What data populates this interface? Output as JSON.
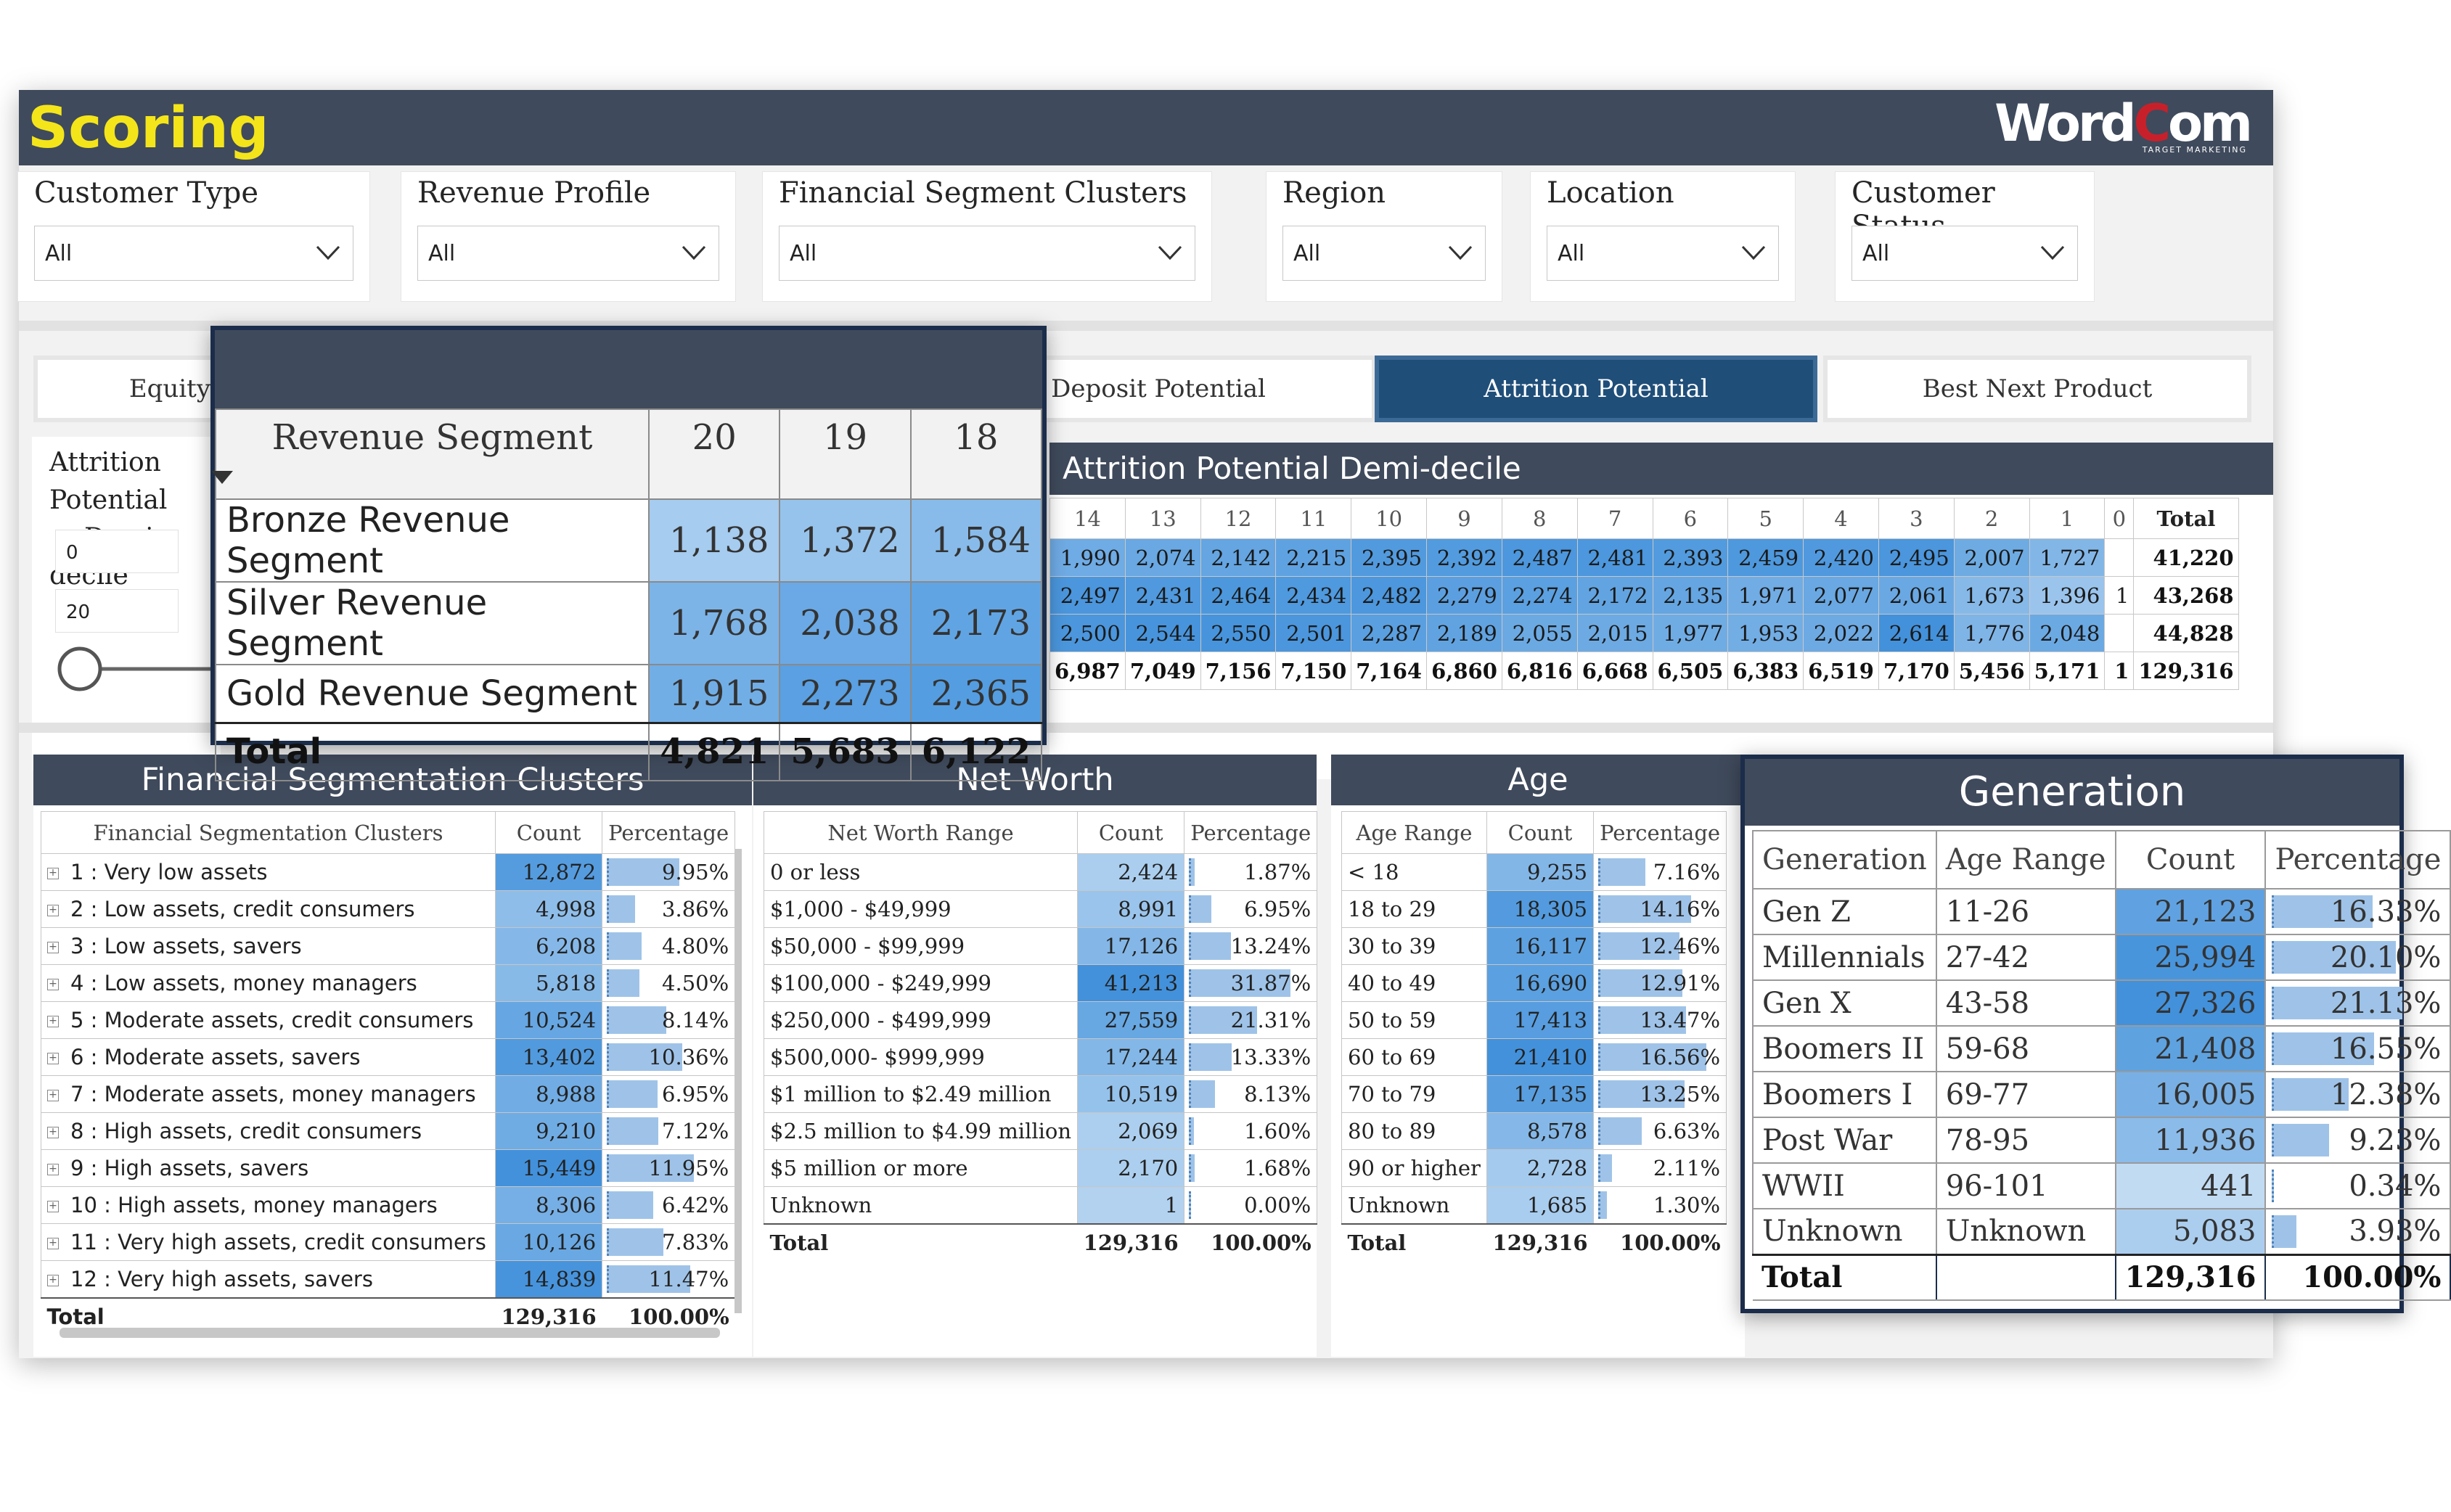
{
  "app_title": "Scoring",
  "logo": {
    "word": "Word",
    "c": "C",
    "om": "om",
    "tagline": "TARGET MARKETING"
  },
  "filters": [
    {
      "label": "Customer Type",
      "value": "All"
    },
    {
      "label": "Revenue Profile",
      "value": "All"
    },
    {
      "label": "Financial Segment Clusters",
      "value": "All"
    },
    {
      "label": "Region",
      "value": "All"
    },
    {
      "label": "Location",
      "value": "All"
    },
    {
      "label": "Customer Status",
      "value": "All"
    }
  ],
  "tabs": [
    {
      "label": "Equity Potential"
    },
    {
      "label": "Deposit Potential"
    },
    {
      "label": "Attrition Potential",
      "active": true
    },
    {
      "label": "Best Next Product"
    }
  ],
  "range_slicer": {
    "title_line1": "Attrition Potential",
    "title_line2": "Demi-decile",
    "min": "0",
    "max": "20"
  },
  "attrition": {
    "title": "Attrition Potential Demi-decile",
    "columns": [
      "14",
      "13",
      "12",
      "11",
      "10",
      "9",
      "8",
      "7",
      "6",
      "5",
      "4",
      "3",
      "2",
      "1",
      "0",
      "Total"
    ],
    "rows": [
      [
        "1,990",
        "2,074",
        "2,142",
        "2,215",
        "2,395",
        "2,392",
        "2,487",
        "2,481",
        "2,393",
        "2,459",
        "2,420",
        "2,495",
        "2,007",
        "1,727",
        "",
        "41,220"
      ],
      [
        "2,497",
        "2,431",
        "2,464",
        "2,434",
        "2,482",
        "2,279",
        "2,274",
        "2,172",
        "2,135",
        "1,971",
        "2,077",
        "2,061",
        "1,673",
        "1,396",
        "1",
        "43,268"
      ],
      [
        "2,500",
        "2,544",
        "2,550",
        "2,501",
        "2,287",
        "2,189",
        "2,055",
        "2,015",
        "1,977",
        "1,953",
        "2,022",
        "2,614",
        "1,776",
        "2,048",
        "",
        "44,828"
      ]
    ],
    "total_row": [
      "6,987",
      "7,049",
      "7,156",
      "7,150",
      "7,164",
      "6,860",
      "6,816",
      "6,668",
      "6,505",
      "6,383",
      "6,519",
      "7,170",
      "5,456",
      "5,171",
      "1",
      "129,316"
    ]
  },
  "revenue_segment": {
    "header": "Revenue Segment",
    "columns": [
      "20",
      "19",
      "18"
    ],
    "rows": [
      {
        "label": "Bronze Revenue Segment",
        "values": [
          "1,138",
          "1,372",
          "1,584"
        ]
      },
      {
        "label": "Silver Revenue Segment",
        "values": [
          "1,768",
          "2,038",
          "2,173"
        ]
      },
      {
        "label": "Gold Revenue Segment",
        "values": [
          "1,915",
          "2,273",
          "2,365"
        ]
      }
    ],
    "total": {
      "label": "Total",
      "values": [
        "4,821",
        "5,683",
        "6,122"
      ]
    }
  },
  "fsc": {
    "title": "Financial Segmentation Clusters",
    "columns": [
      "Financial Segmentation Clusters",
      "Count",
      "Percentage"
    ],
    "rows": [
      {
        "label": "1 : Very low assets",
        "count": "12,872",
        "pct": "9.95%",
        "p": 9.95
      },
      {
        "label": "2 : Low assets, credit consumers",
        "count": "4,998",
        "pct": "3.86%",
        "p": 3.86
      },
      {
        "label": "3 : Low assets, savers",
        "count": "6,208",
        "pct": "4.80%",
        "p": 4.8
      },
      {
        "label": "4 : Low assets, money managers",
        "count": "5,818",
        "pct": "4.50%",
        "p": 4.5
      },
      {
        "label": "5 : Moderate assets, credit consumers",
        "count": "10,524",
        "pct": "8.14%",
        "p": 8.14
      },
      {
        "label": "6 : Moderate assets, savers",
        "count": "13,402",
        "pct": "10.36%",
        "p": 10.36
      },
      {
        "label": "7 : Moderate assets, money managers",
        "count": "8,988",
        "pct": "6.95%",
        "p": 6.95
      },
      {
        "label": "8 : High assets, credit consumers",
        "count": "9,210",
        "pct": "7.12%",
        "p": 7.12
      },
      {
        "label": "9 : High assets, savers",
        "count": "15,449",
        "pct": "11.95%",
        "p": 11.95
      },
      {
        "label": "10 : High assets, money managers",
        "count": "8,306",
        "pct": "6.42%",
        "p": 6.42
      },
      {
        "label": "11 : Very high assets, credit consumers",
        "count": "10,126",
        "pct": "7.83%",
        "p": 7.83
      },
      {
        "label": "12 : Very high assets, savers",
        "count": "14,839",
        "pct": "11.47%",
        "p": 11.47
      }
    ],
    "total": {
      "label": "Total",
      "count": "129,316",
      "pct": "100.00%"
    }
  },
  "networth": {
    "title": "Net Worth",
    "columns": [
      "Net Worth Range",
      "Count",
      "Percentage"
    ],
    "rows": [
      {
        "label": "0 or less",
        "count": "2,424",
        "pct": "1.87%",
        "p": 1.87
      },
      {
        "label": "$1,000 - $49,999",
        "count": "8,991",
        "pct": "6.95%",
        "p": 6.95
      },
      {
        "label": "$50,000 - $99,999",
        "count": "17,126",
        "pct": "13.24%",
        "p": 13.24
      },
      {
        "label": "$100,000 - $249,999",
        "count": "41,213",
        "pct": "31.87%",
        "p": 31.87
      },
      {
        "label": "$250,000 - $499,999",
        "count": "27,559",
        "pct": "21.31%",
        "p": 21.31
      },
      {
        "label": "$500,000- $999,999",
        "count": "17,244",
        "pct": "13.33%",
        "p": 13.33
      },
      {
        "label": "$1 million to $2.49 million",
        "count": "10,519",
        "pct": "8.13%",
        "p": 8.13
      },
      {
        "label": "$2.5 million to $4.99 million",
        "count": "2,069",
        "pct": "1.60%",
        "p": 1.6
      },
      {
        "label": "$5 million or more",
        "count": "2,170",
        "pct": "1.68%",
        "p": 1.68
      },
      {
        "label": "Unknown",
        "count": "1",
        "pct": "0.00%",
        "p": 0
      }
    ],
    "total": {
      "label": "Total",
      "count": "129,316",
      "pct": "100.00%"
    }
  },
  "age": {
    "title": "Age",
    "columns": [
      "Age Range",
      "Count",
      "Percentage"
    ],
    "rows": [
      {
        "label": "< 18",
        "count": "9,255",
        "pct": "7.16%",
        "p": 7.16
      },
      {
        "label": "18 to 29",
        "count": "18,305",
        "pct": "14.16%",
        "p": 14.16
      },
      {
        "label": "30 to 39",
        "count": "16,117",
        "pct": "12.46%",
        "p": 12.46
      },
      {
        "label": "40 to 49",
        "count": "16,690",
        "pct": "12.91%",
        "p": 12.91
      },
      {
        "label": "50 to 59",
        "count": "17,413",
        "pct": "13.47%",
        "p": 13.47
      },
      {
        "label": "60 to 69",
        "count": "21,410",
        "pct": "16.56%",
        "p": 16.56
      },
      {
        "label": "70 to 79",
        "count": "17,135",
        "pct": "13.25%",
        "p": 13.25
      },
      {
        "label": "80 to 89",
        "count": "8,578",
        "pct": "6.63%",
        "p": 6.63
      },
      {
        "label": "90 or higher",
        "count": "2,728",
        "pct": "2.11%",
        "p": 2.11
      },
      {
        "label": "Unknown",
        "count": "1,685",
        "pct": "1.30%",
        "p": 1.3
      }
    ],
    "total": {
      "label": "Total",
      "count": "129,316",
      "pct": "100.00%"
    }
  },
  "generation": {
    "title": "Generation",
    "columns": [
      "Generation",
      "Age Range",
      "Count",
      "Percentage"
    ],
    "rows": [
      {
        "label": "Gen Z",
        "range": "11-26",
        "count": "21,123",
        "pct": "16.33%",
        "p": 16.33
      },
      {
        "label": "Millennials",
        "range": "27-42",
        "count": "25,994",
        "pct": "20.10%",
        "p": 20.1
      },
      {
        "label": "Gen X",
        "range": "43-58",
        "count": "27,326",
        "pct": "21.13%",
        "p": 21.13
      },
      {
        "label": "Boomers II",
        "range": "59-68",
        "count": "21,408",
        "pct": "16.55%",
        "p": 16.55
      },
      {
        "label": "Boomers I",
        "range": "69-77",
        "count": "16,005",
        "pct": "12.38%",
        "p": 12.38
      },
      {
        "label": "Post War",
        "range": "78-95",
        "count": "11,936",
        "pct": "9.23%",
        "p": 9.23
      },
      {
        "label": "WWII",
        "range": "96-101",
        "count": "441",
        "pct": "0.34%",
        "p": 0.34
      },
      {
        "label": "Unknown",
        "range": "Unknown",
        "count": "5,083",
        "pct": "3.93%",
        "p": 3.93
      }
    ],
    "total": {
      "label": "Total",
      "range": "",
      "count": "129,316",
      "pct": "100.00%"
    }
  },
  "colors": {
    "header_bg": "#3f4a5c",
    "title_yellow": "#f4e51a",
    "active_tab": "#1f4e79",
    "bar": "#9fc3e8"
  }
}
